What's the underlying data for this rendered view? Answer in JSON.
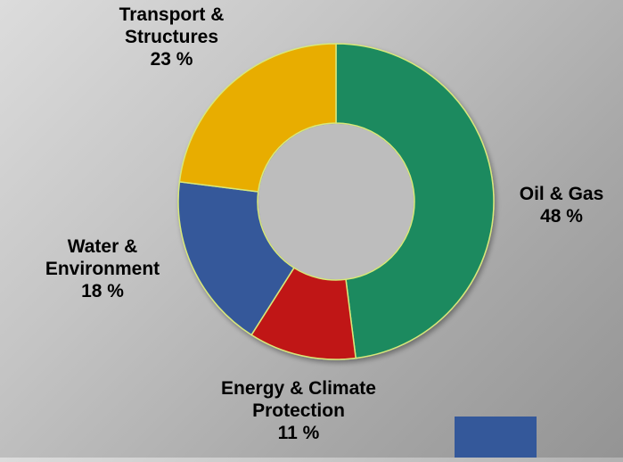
{
  "chart_data": {
    "type": "pie",
    "donut": true,
    "categories": [
      "Oil & Gas",
      "Energy & Climate Protection",
      "Water & Environment",
      "Transport & Structures"
    ],
    "values": [
      48,
      11,
      18,
      23
    ],
    "labels": [
      {
        "lines": [
          "Oil & Gas"
        ],
        "value": "48 %"
      },
      {
        "lines": [
          "Energy & Climate",
          "Protection"
        ],
        "value": "11 %"
      },
      {
        "lines": [
          "Water &",
          "Environment"
        ],
        "value": "18 %"
      },
      {
        "lines": [
          "Transport &",
          "Structures"
        ],
        "value": "23 %"
      }
    ],
    "colors": [
      "#1a8a5f",
      "#c01414",
      "#34589a",
      "#e8ad05"
    ],
    "title": "",
    "legend": "none"
  },
  "legend_swatch_color": "#34589a"
}
